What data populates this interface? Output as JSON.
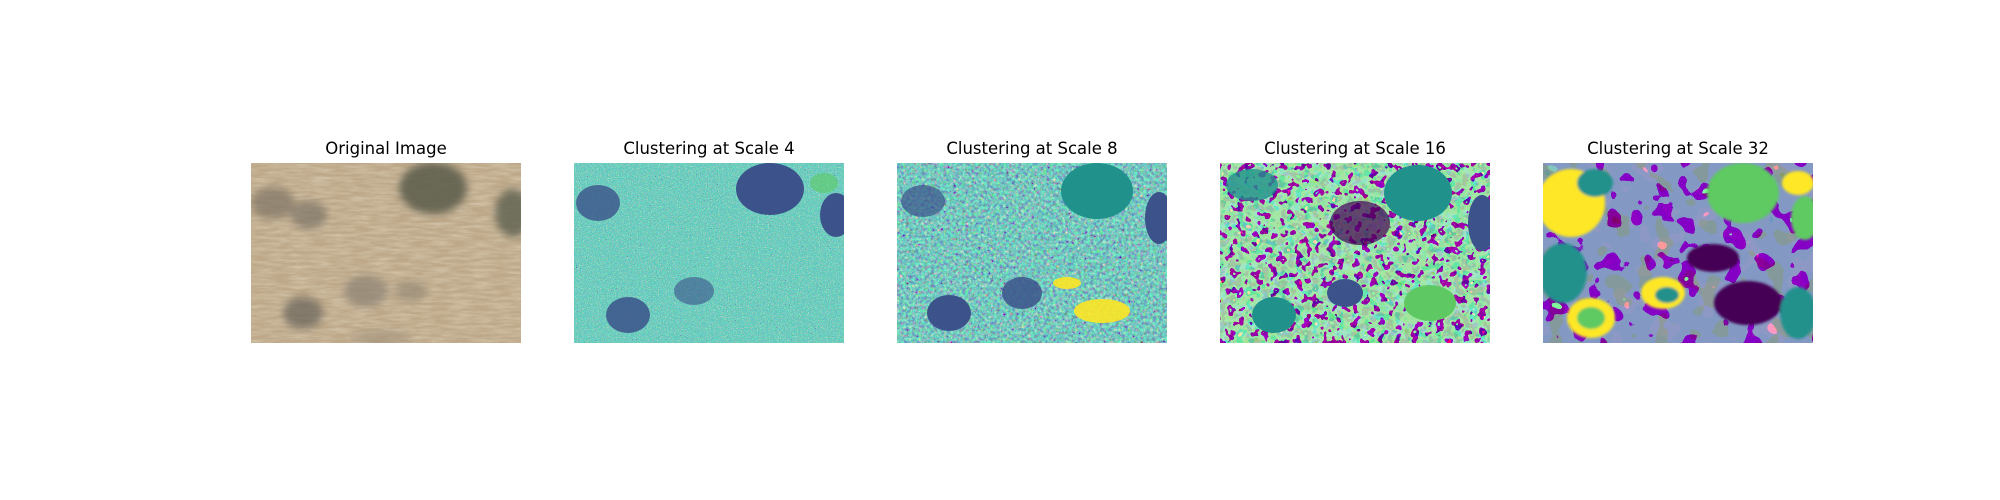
{
  "panels": [
    {
      "title": "Original Image",
      "kind": "photo"
    },
    {
      "title": "Clustering at Scale 4",
      "kind": "cluster",
      "scale": 4
    },
    {
      "title": "Clustering at Scale 8",
      "kind": "cluster",
      "scale": 8
    },
    {
      "title": "Clustering at Scale 16",
      "kind": "cluster",
      "scale": 16
    },
    {
      "title": "Clustering at Scale 32",
      "kind": "cluster",
      "scale": 32
    }
  ],
  "colors": {
    "viridis_purple": "#440154",
    "viridis_blue": "#3b528b",
    "viridis_teal": "#21918c",
    "viridis_green": "#5ec962",
    "viridis_yellow": "#fde725",
    "grass_tan": "#c6b08c",
    "shrub_gray": "#6f6a62"
  }
}
